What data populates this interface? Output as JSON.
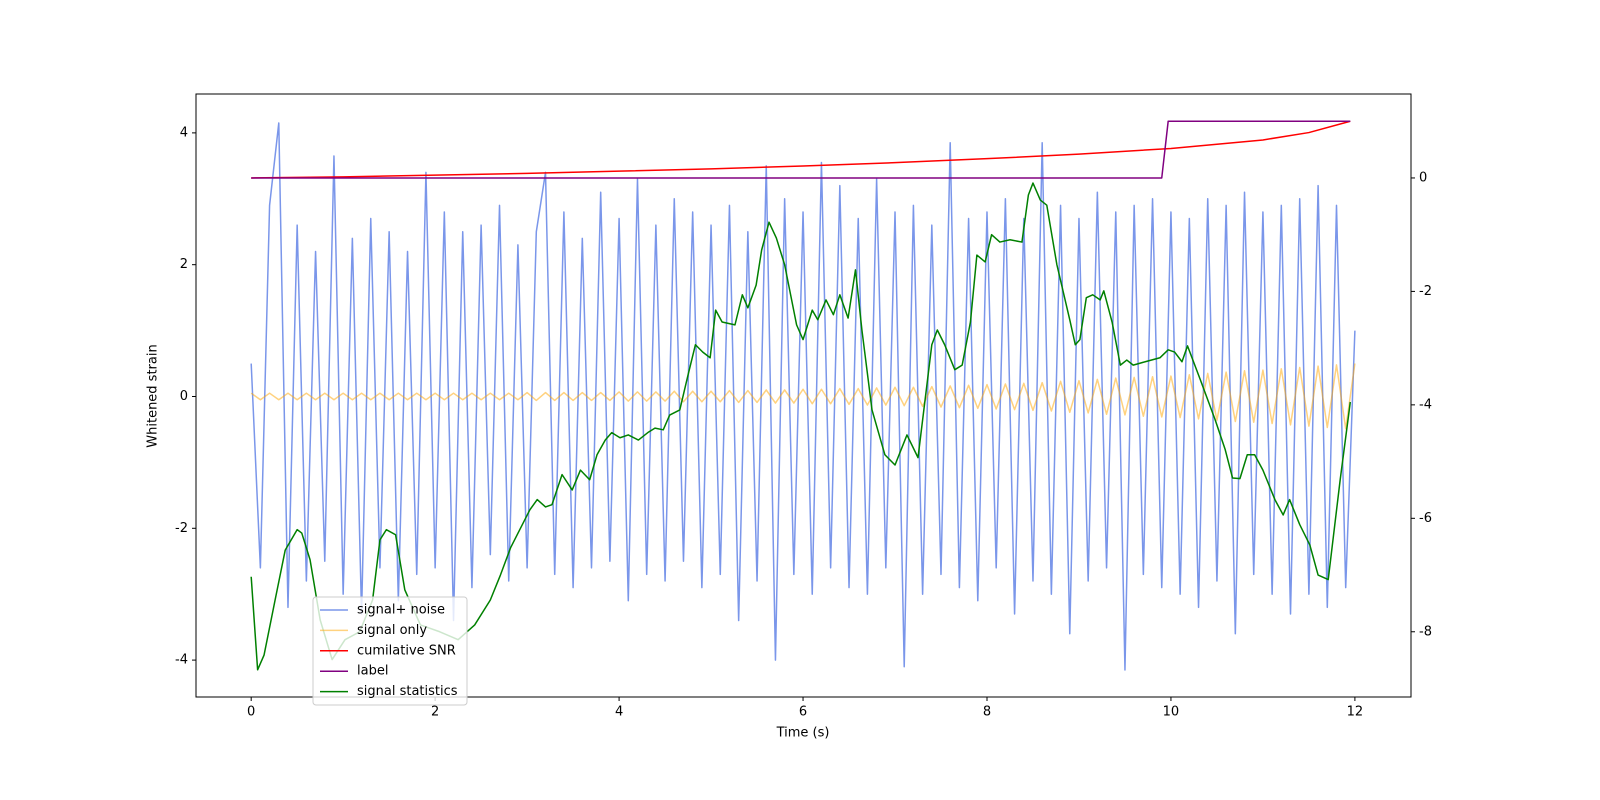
{
  "chart_data": {
    "type": "line",
    "xlabel": "Time (s)",
    "ylabel": "Whitened strain",
    "xlim": [
      -0.6,
      12.61
    ],
    "xticks": [
      0,
      2,
      4,
      6,
      8,
      10,
      12
    ],
    "ylim": [
      -4.56,
      4.59
    ],
    "yticks": [
      -4,
      -2,
      0,
      2,
      4
    ],
    "y2lim": [
      -9.15,
      1.48
    ],
    "y2ticks": [
      -8,
      -6,
      -4,
      -2,
      0
    ],
    "series": [
      {
        "name": "signal+ noise",
        "color": "#4169e1",
        "alpha": 0.7,
        "axis": "y",
        "x": [
          0,
          0.1,
          0.2,
          0.3,
          0.4,
          0.5,
          0.6,
          0.7,
          0.8,
          0.9,
          1,
          1.1,
          1.2,
          1.3,
          1.4,
          1.5,
          1.6,
          1.7,
          1.8,
          1.9,
          2,
          2.1,
          2.2,
          2.3,
          2.4,
          2.5,
          2.6,
          2.7,
          2.8,
          2.9,
          3,
          3.1,
          3.2,
          3.3,
          3.4,
          3.5,
          3.6,
          3.7,
          3.8,
          3.9,
          4,
          4.1,
          4.2,
          4.3,
          4.4,
          4.5,
          4.6,
          4.7,
          4.8,
          4.9,
          5,
          5.1,
          5.2,
          5.3,
          5.4,
          5.5,
          5.6,
          5.7,
          5.8,
          5.9,
          6,
          6.1,
          6.2,
          6.3,
          6.4,
          6.5,
          6.6,
          6.7,
          6.8,
          6.9,
          7,
          7.1,
          7.2,
          7.3,
          7.4,
          7.5,
          7.6,
          7.7,
          7.8,
          7.9,
          8,
          8.1,
          8.2,
          8.3,
          8.4,
          8.5,
          8.6,
          8.7,
          8.8,
          8.9,
          9,
          9.1,
          9.2,
          9.3,
          9.4,
          9.5,
          9.6,
          9.7,
          9.8,
          9.9,
          10,
          10.1,
          10.2,
          10.3,
          10.4,
          10.5,
          10.6,
          10.7,
          10.8,
          10.9,
          11,
          11.1,
          11.2,
          11.3,
          11.4,
          11.5,
          11.6,
          11.7,
          11.8,
          11.9,
          12
        ],
        "values": [
          0.5,
          -2.6,
          2.9,
          4.15,
          -3.2,
          2.6,
          -2.8,
          2.2,
          -2.5,
          3.65,
          -3.0,
          2.4,
          -3.3,
          2.7,
          -2.6,
          2.5,
          -3.1,
          2.2,
          -2.7,
          3.4,
          -2.6,
          2.8,
          -3.4,
          2.5,
          -2.9,
          2.6,
          -2.4,
          2.9,
          -2.8,
          2.3,
          -2.6,
          2.5,
          3.4,
          -2.7,
          2.8,
          -2.9,
          2.4,
          -2.6,
          3.1,
          -2.5,
          2.7,
          -3.1,
          3.3,
          -2.7,
          2.6,
          -2.8,
          3.0,
          -2.5,
          2.8,
          -2.9,
          2.6,
          -2.7,
          2.9,
          -3.4,
          2.5,
          -2.8,
          3.5,
          -4.0,
          3.0,
          -2.7,
          2.8,
          -3.0,
          3.55,
          -2.6,
          3.2,
          -2.9,
          2.7,
          -3.0,
          3.3,
          -2.6,
          2.8,
          -4.1,
          2.9,
          -3.0,
          2.6,
          -2.7,
          3.85,
          -2.9,
          2.7,
          -3.1,
          2.8,
          -2.6,
          3.0,
          -3.3,
          2.7,
          -2.8,
          3.85,
          -3.0,
          2.9,
          -3.6,
          2.7,
          -2.8,
          3.1,
          -2.6,
          2.8,
          -4.15,
          2.9,
          -2.7,
          3.0,
          -2.9,
          2.8,
          -3.0,
          2.7,
          -3.2,
          3.0,
          -2.8,
          2.9,
          -3.6,
          3.1,
          -2.7,
          2.8,
          -3.0,
          2.9,
          -3.3,
          3.0,
          -3.0,
          3.2,
          -3.2,
          2.9,
          -2.9,
          1.0
        ]
      },
      {
        "name": "signal only",
        "color": "#ffa500",
        "alpha": 0.5,
        "axis": "y",
        "x": [
          0,
          0.1,
          0.2,
          0.3,
          0.4,
          0.5,
          0.6,
          0.7,
          0.8,
          0.9,
          1,
          1.1,
          1.2,
          1.3,
          1.4,
          1.5,
          1.6,
          1.7,
          1.8,
          1.9,
          2,
          2.1,
          2.2,
          2.3,
          2.4,
          2.5,
          2.6,
          2.7,
          2.8,
          2.9,
          3,
          3.1,
          3.2,
          3.3,
          3.4,
          3.5,
          3.6,
          3.7,
          3.8,
          3.9,
          4,
          4.1,
          4.2,
          4.3,
          4.4,
          4.5,
          4.6,
          4.7,
          4.8,
          4.9,
          5,
          5.1,
          5.2,
          5.3,
          5.4,
          5.5,
          5.6,
          5.7,
          5.8,
          5.9,
          6,
          6.1,
          6.2,
          6.3,
          6.4,
          6.5,
          6.6,
          6.7,
          6.8,
          6.9,
          7,
          7.1,
          7.2,
          7.3,
          7.4,
          7.5,
          7.6,
          7.7,
          7.8,
          7.9,
          8,
          8.1,
          8.2,
          8.3,
          8.4,
          8.5,
          8.6,
          8.7,
          8.8,
          8.9,
          9,
          9.1,
          9.2,
          9.3,
          9.4,
          9.5,
          9.6,
          9.7,
          9.8,
          9.9,
          10,
          10.1,
          10.2,
          10.3,
          10.4,
          10.5,
          10.6,
          10.7,
          10.8,
          10.9,
          11,
          11.1,
          11.2,
          11.3,
          11.4,
          11.5,
          11.6,
          11.7,
          11.8,
          11.9,
          12
        ],
        "values": [
          0.05,
          -0.05,
          0.05,
          -0.05,
          0.05,
          -0.05,
          0.05,
          -0.05,
          0.05,
          -0.05,
          0.05,
          -0.05,
          0.05,
          -0.05,
          0.05,
          -0.05,
          0.05,
          -0.05,
          0.05,
          -0.05,
          0.05,
          -0.05,
          0.05,
          -0.05,
          0.05,
          -0.05,
          0.05,
          -0.05,
          0.05,
          -0.05,
          0.06,
          -0.06,
          0.06,
          -0.06,
          0.06,
          -0.06,
          0.06,
          -0.06,
          0.06,
          -0.06,
          0.07,
          -0.07,
          0.07,
          -0.07,
          0.07,
          -0.07,
          0.08,
          -0.08,
          0.08,
          -0.08,
          0.08,
          -0.08,
          0.09,
          -0.09,
          0.09,
          -0.09,
          0.1,
          -0.1,
          0.1,
          -0.1,
          0.11,
          -0.11,
          0.11,
          -0.11,
          0.12,
          -0.12,
          0.12,
          -0.13,
          0.13,
          -0.13,
          0.14,
          -0.14,
          0.14,
          -0.15,
          0.15,
          -0.16,
          0.16,
          -0.17,
          0.17,
          -0.18,
          0.18,
          -0.19,
          0.19,
          -0.2,
          0.2,
          -0.21,
          0.21,
          -0.22,
          0.23,
          -0.24,
          0.24,
          -0.25,
          0.26,
          -0.27,
          0.28,
          -0.28,
          0.29,
          -0.3,
          0.3,
          -0.31,
          0.31,
          -0.32,
          0.33,
          -0.34,
          0.35,
          -0.36,
          0.37,
          -0.38,
          0.39,
          -0.39,
          0.4,
          -0.41,
          0.42,
          -0.43,
          0.44,
          -0.45,
          0.46,
          -0.47,
          0.48,
          -0.49,
          0.5
        ]
      },
      {
        "name": "cumilative SNR",
        "color": "#ff0000",
        "axis": "y2",
        "x": [
          0,
          1,
          2,
          3,
          4,
          5,
          6,
          7,
          8,
          9,
          10,
          11,
          11.5,
          11.95
        ],
        "values": [
          0,
          0.02,
          0.05,
          0.08,
          0.12,
          0.16,
          0.21,
          0.27,
          0.34,
          0.42,
          0.52,
          0.67,
          0.8,
          1.0
        ]
      },
      {
        "name": "label",
        "color": "#800080",
        "axis": "y2",
        "x": [
          0,
          9.9,
          9.97,
          11.95
        ],
        "values": [
          0,
          0,
          1,
          1
        ]
      },
      {
        "name": "signal statistics",
        "color": "#008000",
        "axis": "y2",
        "x": [
          0,
          0.07,
          0.14,
          0.26,
          0.37,
          0.5,
          0.55,
          0.64,
          0.75,
          0.88,
          1.02,
          1.18,
          1.32,
          1.4,
          1.47,
          1.57,
          1.67,
          1.84,
          2.05,
          2.25,
          2.43,
          2.6,
          2.71,
          2.82,
          2.92,
          3.03,
          3.11,
          3.2,
          3.27,
          3.38,
          3.49,
          3.58,
          3.68,
          3.76,
          3.85,
          3.92,
          4.01,
          4.1,
          4.21,
          4.32,
          4.39,
          4.48,
          4.55,
          4.66,
          4.75,
          4.83,
          4.91,
          4.99,
          5.05,
          5.12,
          5.26,
          5.34,
          5.4,
          5.49,
          5.55,
          5.63,
          5.71,
          5.8,
          5.93,
          6.0,
          6.1,
          6.16,
          6.25,
          6.33,
          6.4,
          6.49,
          6.57,
          6.64,
          6.75,
          6.89,
          7.0,
          7.13,
          7.25,
          7.4,
          7.46,
          7.54,
          7.65,
          7.73,
          7.82,
          7.89,
          7.98,
          8.05,
          8.14,
          8.25,
          8.38,
          8.45,
          8.5,
          8.58,
          8.65,
          8.76,
          8.9,
          8.96,
          9.01,
          9.08,
          9.15,
          9.23,
          9.27,
          9.36,
          9.45,
          9.52,
          9.59,
          9.72,
          9.88,
          9.97,
          10.04,
          10.12,
          10.18,
          10.32,
          10.48,
          10.59,
          10.67,
          10.75,
          10.83,
          10.91,
          11.0,
          11.13,
          11.22,
          11.29,
          11.4,
          11.51,
          11.6,
          11.71,
          11.84,
          11.95
        ],
        "values": [
          -7.03,
          -8.67,
          -8.41,
          -7.44,
          -6.56,
          -6.2,
          -6.26,
          -6.73,
          -7.79,
          -8.49,
          -8.14,
          -8.0,
          -7.44,
          -6.38,
          -6.2,
          -6.29,
          -7.26,
          -7.88,
          -8.0,
          -8.14,
          -7.88,
          -7.44,
          -7.0,
          -6.52,
          -6.2,
          -5.85,
          -5.67,
          -5.8,
          -5.76,
          -5.23,
          -5.5,
          -5.15,
          -5.32,
          -4.88,
          -4.62,
          -4.49,
          -4.58,
          -4.53,
          -4.62,
          -4.48,
          -4.41,
          -4.44,
          -4.18,
          -4.09,
          -3.47,
          -2.94,
          -3.07,
          -3.17,
          -2.33,
          -2.54,
          -2.59,
          -2.06,
          -2.29,
          -1.89,
          -1.27,
          -0.78,
          -1.06,
          -1.53,
          -2.59,
          -2.85,
          -2.33,
          -2.5,
          -2.15,
          -2.41,
          -2.06,
          -2.47,
          -1.62,
          -2.68,
          -4.09,
          -4.88,
          -5.06,
          -4.53,
          -4.93,
          -2.94,
          -2.68,
          -2.94,
          -3.38,
          -3.3,
          -2.54,
          -1.36,
          -1.48,
          -1.0,
          -1.13,
          -1.09,
          -1.13,
          -0.3,
          -0.09,
          -0.39,
          -0.48,
          -1.53,
          -2.5,
          -2.94,
          -2.85,
          -2.11,
          -2.06,
          -2.15,
          -1.99,
          -2.54,
          -3.3,
          -3.21,
          -3.3,
          -3.24,
          -3.17,
          -3.03,
          -3.07,
          -3.24,
          -2.96,
          -3.56,
          -4.26,
          -4.79,
          -5.29,
          -5.3,
          -4.88,
          -4.88,
          -5.15,
          -5.67,
          -5.94,
          -5.67,
          -6.11,
          -6.47,
          -7.0,
          -7.08,
          -5.32,
          -3.95
        ]
      }
    ]
  }
}
